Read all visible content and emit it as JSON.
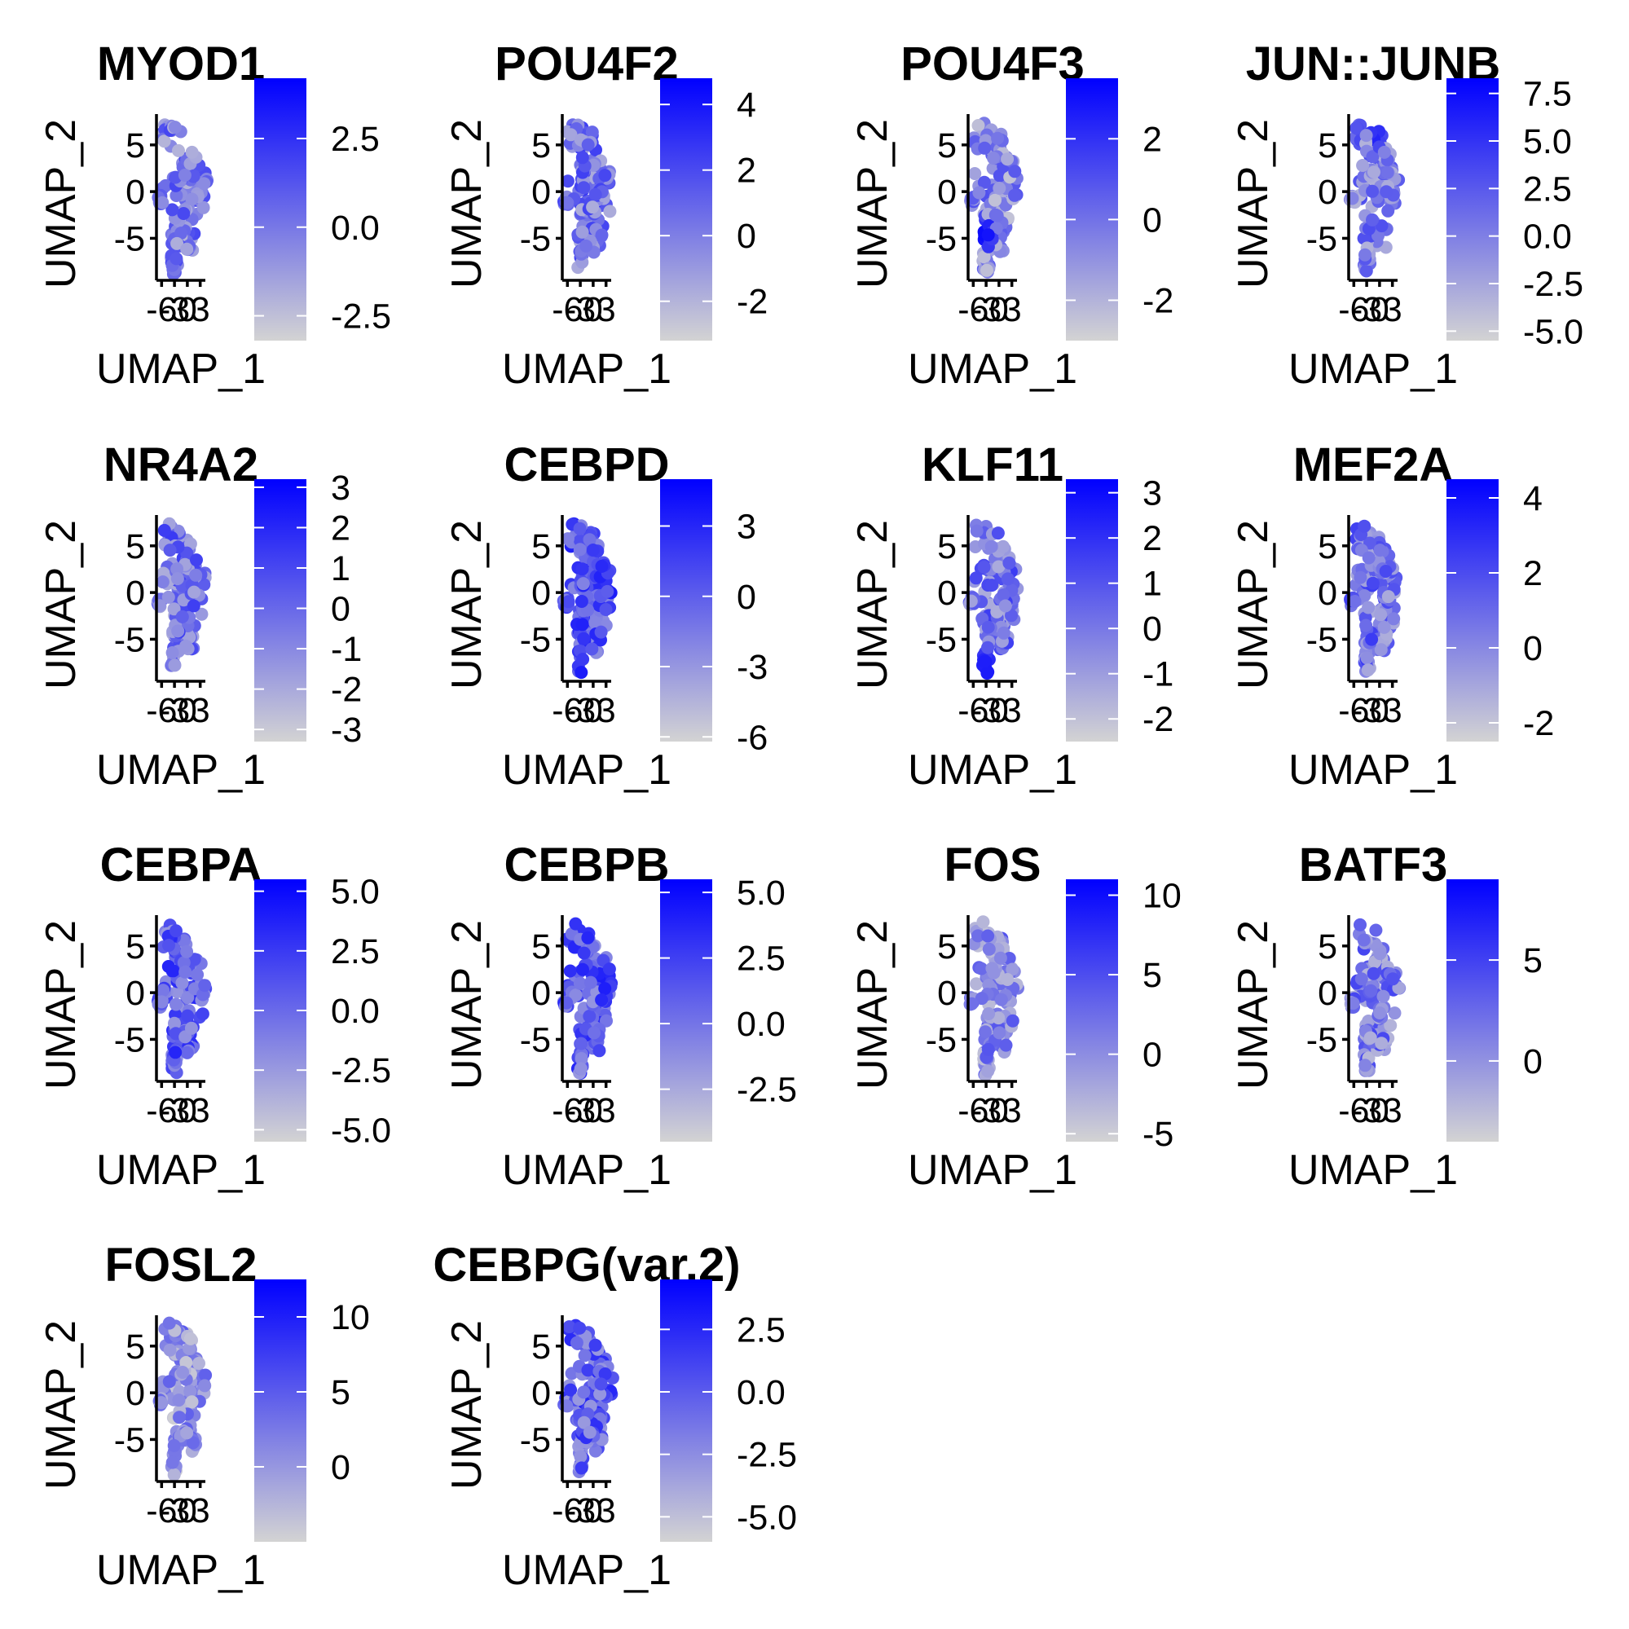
{
  "colors": {
    "low": "#d3d3d3",
    "high": "#0000ff",
    "text": "#000000",
    "axis": "#000000"
  },
  "shared": {
    "xlabel": "UMAP_1",
    "ylabel": "UMAP_2",
    "x_ticks": [
      "-6",
      "-3",
      "0",
      "3"
    ],
    "y_ticks": [
      "5",
      "0",
      "-5"
    ]
  },
  "chart_data": [
    {
      "type": "scatter",
      "title": "MYOD1",
      "xlabel": "UMAP_1",
      "ylabel": "UMAP_2",
      "colorbar_ticks": [
        "2.5",
        "0.0",
        "-2.5"
      ],
      "colorbar_range": [
        -3.2,
        4.2
      ],
      "intensity": 0.4,
      "seed": 11,
      "hotspots": []
    },
    {
      "type": "scatter",
      "title": "POU4F2",
      "xlabel": "UMAP_1",
      "ylabel": "UMAP_2",
      "colorbar_ticks": [
        "4",
        "2",
        "0",
        "-2"
      ],
      "colorbar_range": [
        -3.2,
        4.8
      ],
      "intensity": 0.45,
      "seed": 23,
      "hotspots": []
    },
    {
      "type": "scatter",
      "title": "POU4F3",
      "xlabel": "UMAP_1",
      "ylabel": "UMAP_2",
      "colorbar_ticks": [
        "2",
        "0",
        "-2"
      ],
      "colorbar_range": [
        -3,
        3.5
      ],
      "intensity": 0.35,
      "seed": 37,
      "hotspots": [
        [
          -3.2,
          -4.5,
          0.95
        ]
      ]
    },
    {
      "type": "scatter",
      "title": "JUN::JUNB",
      "xlabel": "UMAP_1",
      "ylabel": "UMAP_2",
      "colorbar_ticks": [
        "7.5",
        "5.0",
        "2.5",
        "0.0",
        "-2.5",
        "-5.0"
      ],
      "colorbar_range": [
        -5.5,
        8.3
      ],
      "intensity": 0.4,
      "seed": 41,
      "hotspots": [
        [
          -1,
          6,
          0.85
        ]
      ]
    },
    {
      "type": "scatter",
      "title": "NR4A2",
      "xlabel": "UMAP_1",
      "ylabel": "UMAP_2",
      "colorbar_ticks": [
        "3",
        "2",
        "1",
        "0",
        "-1",
        "-2",
        "-3"
      ],
      "colorbar_range": [
        -3.3,
        3.2
      ],
      "intensity": 0.45,
      "seed": 53,
      "hotspots": []
    },
    {
      "type": "scatter",
      "title": "CEBPD",
      "xlabel": "UMAP_1",
      "ylabel": "UMAP_2",
      "colorbar_ticks": [
        "3",
        "0",
        "-3",
        "-6"
      ],
      "colorbar_range": [
        -6.2,
        5
      ],
      "intensity": 0.6,
      "seed": 67,
      "hotspots": [
        [
          2,
          1.5,
          0.85
        ]
      ]
    },
    {
      "type": "scatter",
      "title": "KLF11",
      "xlabel": "UMAP_1",
      "ylabel": "UMAP_2",
      "colorbar_ticks": [
        "3",
        "2",
        "1",
        "0",
        "-1",
        "-2"
      ],
      "colorbar_range": [
        -2.5,
        3.3
      ],
      "intensity": 0.45,
      "seed": 71,
      "hotspots": [
        [
          -3,
          -8,
          0.9
        ]
      ]
    },
    {
      "type": "scatter",
      "title": "MEF2A",
      "xlabel": "UMAP_1",
      "ylabel": "UMAP_2",
      "colorbar_ticks": [
        "4",
        "2",
        "0",
        "-2"
      ],
      "colorbar_range": [
        -2.5,
        4.5
      ],
      "intensity": 0.45,
      "seed": 83,
      "hotspots": []
    },
    {
      "type": "scatter",
      "title": "CEBPA",
      "xlabel": "UMAP_1",
      "ylabel": "UMAP_2",
      "colorbar_ticks": [
        "5.0",
        "2.5",
        "0.0",
        "-2.5",
        "-5.0"
      ],
      "colorbar_range": [
        -5.5,
        5.5
      ],
      "intensity": 0.55,
      "seed": 97,
      "hotspots": []
    },
    {
      "type": "scatter",
      "title": "CEBPB",
      "xlabel": "UMAP_1",
      "ylabel": "UMAP_2",
      "colorbar_ticks": [
        "5.0",
        "2.5",
        "0.0",
        "-2.5"
      ],
      "colorbar_range": [
        -4.5,
        5.5
      ],
      "intensity": 0.55,
      "seed": 101,
      "hotspots": [
        [
          2.5,
          1.5,
          0.95
        ]
      ]
    },
    {
      "type": "scatter",
      "title": "FOS",
      "xlabel": "UMAP_1",
      "ylabel": "UMAP_2",
      "colorbar_ticks": [
        "10",
        "5",
        "0",
        "-5"
      ],
      "colorbar_range": [
        -5.5,
        11
      ],
      "intensity": 0.35,
      "seed": 113,
      "hotspots": []
    },
    {
      "type": "scatter",
      "title": "BATF3",
      "xlabel": "UMAP_1",
      "ylabel": "UMAP_2",
      "colorbar_ticks": [
        "5",
        "0"
      ],
      "colorbar_range": [
        -4,
        9
      ],
      "intensity": 0.4,
      "seed": 127,
      "hotspots": []
    },
    {
      "type": "scatter",
      "title": "FOSL2",
      "xlabel": "UMAP_1",
      "ylabel": "UMAP_2",
      "colorbar_ticks": [
        "10",
        "5",
        "0"
      ],
      "colorbar_range": [
        -5,
        12.5
      ],
      "intensity": 0.3,
      "seed": 131,
      "hotspots": []
    },
    {
      "type": "scatter",
      "title": "CEBPG(var.2)",
      "xlabel": "UMAP_1",
      "ylabel": "UMAP_2",
      "colorbar_ticks": [
        "2.5",
        "0.0",
        "-2.5",
        "-5.0"
      ],
      "colorbar_range": [
        -6,
        4.5
      ],
      "intensity": 0.55,
      "seed": 139,
      "hotspots": []
    }
  ]
}
